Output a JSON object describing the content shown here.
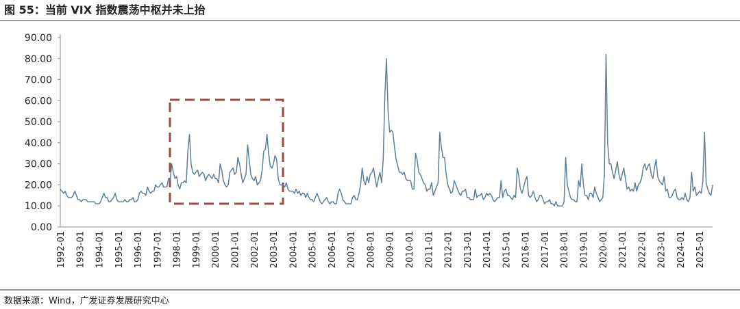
{
  "title": "图 55：当前 VIX 指数震荡中枢并未上抬",
  "source": "数据来源：Wind，广发证券发展研究中心",
  "chart_data": {
    "type": "line",
    "color": "#5e7f98",
    "ylim": [
      0,
      90
    ],
    "yticks": [
      {
        "value": 0,
        "label": "0.00"
      },
      {
        "value": 10,
        "label": "10.00"
      },
      {
        "value": 20,
        "label": "20.00"
      },
      {
        "value": 30,
        "label": "30.00"
      },
      {
        "value": 40,
        "label": "40.00"
      },
      {
        "value": 50,
        "label": "50.00"
      },
      {
        "value": 60,
        "label": "60.00"
      },
      {
        "value": 70,
        "label": "70.00"
      },
      {
        "value": 80,
        "label": "80.00"
      },
      {
        "value": 90,
        "label": "90.00"
      }
    ],
    "categories": [
      "1992-01",
      null,
      null,
      null,
      null,
      null,
      null,
      null,
      null,
      null,
      null,
      null,
      "1993-01",
      null,
      null,
      null,
      null,
      null,
      null,
      null,
      null,
      null,
      null,
      null,
      "1994-01",
      null,
      null,
      null,
      null,
      null,
      null,
      null,
      null,
      null,
      null,
      null,
      "1995-01",
      null,
      null,
      null,
      null,
      null,
      null,
      null,
      null,
      null,
      null,
      null,
      "1996-01",
      null,
      null,
      null,
      null,
      null,
      null,
      null,
      null,
      null,
      null,
      null,
      "1997-01",
      null,
      null,
      null,
      null,
      null,
      null,
      null,
      null,
      null,
      null,
      null,
      "1998-01",
      null,
      null,
      null,
      null,
      null,
      null,
      null,
      null,
      null,
      null,
      null,
      "1999-01",
      null,
      null,
      null,
      null,
      null,
      null,
      null,
      null,
      null,
      null,
      null,
      "2000-01",
      null,
      null,
      null,
      null,
      null,
      null,
      null,
      null,
      null,
      null,
      null,
      "2001-01",
      null,
      null,
      null,
      null,
      null,
      null,
      null,
      null,
      null,
      null,
      null,
      "2002-01",
      null,
      null,
      null,
      null,
      null,
      null,
      null,
      null,
      null,
      null,
      null,
      "2003-01",
      null,
      null,
      null,
      null,
      null,
      null,
      null,
      null,
      null,
      null,
      null,
      "2004-01",
      null,
      null,
      null,
      null,
      null,
      null,
      null,
      null,
      null,
      null,
      null,
      "2005-01",
      null,
      null,
      null,
      null,
      null,
      null,
      null,
      null,
      null,
      null,
      null,
      "2006-01",
      null,
      null,
      null,
      null,
      null,
      null,
      null,
      null,
      null,
      null,
      null,
      "2007-01",
      null,
      null,
      null,
      null,
      null,
      null,
      null,
      null,
      null,
      null,
      null,
      "2008-01",
      null,
      null,
      null,
      null,
      null,
      null,
      null,
      null,
      null,
      null,
      null,
      "2009-01",
      null,
      null,
      null,
      null,
      null,
      null,
      null,
      null,
      null,
      null,
      null,
      "2010-01",
      null,
      null,
      null,
      null,
      null,
      null,
      null,
      null,
      null,
      null,
      null,
      "2011-01",
      null,
      null,
      null,
      null,
      null,
      null,
      null,
      null,
      null,
      null,
      null,
      "2012-01",
      null,
      null,
      null,
      null,
      null,
      null,
      null,
      null,
      null,
      null,
      null,
      "2013-01",
      null,
      null,
      null,
      null,
      null,
      null,
      null,
      null,
      null,
      null,
      null,
      "2014-01",
      null,
      null,
      null,
      null,
      null,
      null,
      null,
      null,
      null,
      null,
      null,
      "2015-01",
      null,
      null,
      null,
      null,
      null,
      null,
      null,
      null,
      null,
      null,
      null,
      "2016-01",
      null,
      null,
      null,
      null,
      null,
      null,
      null,
      null,
      null,
      null,
      null,
      "2017-01",
      null,
      null,
      null,
      null,
      null,
      null,
      null,
      null,
      null,
      null,
      null,
      "2018-01",
      null,
      null,
      null,
      null,
      null,
      null,
      null,
      null,
      null,
      null,
      null,
      "2019-01",
      null,
      null,
      null,
      null,
      null,
      null,
      null,
      null,
      null,
      null,
      null,
      "2020-01",
      null,
      null,
      null,
      null,
      null,
      null,
      null,
      null,
      null,
      null,
      null,
      "2021-01",
      null,
      null,
      null,
      null,
      null,
      null,
      null,
      null,
      null,
      null,
      null,
      "2022-01",
      null,
      null,
      null,
      null,
      null,
      null,
      null,
      null,
      null,
      null,
      null,
      "2023-01",
      null,
      null,
      null,
      null,
      null,
      null,
      null,
      null,
      null,
      null,
      null,
      "2024-01",
      null,
      null,
      null,
      null,
      null,
      null,
      null,
      null,
      null,
      null,
      null,
      "2025-01",
      null,
      null,
      null,
      null,
      null,
      null,
      null,
      null
    ],
    "values": [
      18,
      17,
      16,
      17,
      15,
      14,
      14,
      14,
      15,
      17,
      15,
      13,
      13,
      12,
      13,
      13,
      13,
      12,
      12,
      12,
      12,
      12,
      11,
      11,
      11,
      12,
      14,
      16,
      14,
      14,
      12,
      12,
      13,
      14,
      16,
      13,
      12,
      12,
      12,
      12,
      13,
      12,
      12,
      13,
      13,
      14,
      12,
      12,
      13,
      16,
      17,
      16,
      16,
      15,
      19,
      17,
      16,
      17,
      17,
      20,
      19,
      19,
      20,
      21,
      19,
      19,
      19,
      23,
      22,
      30,
      26,
      23,
      24,
      20,
      18,
      21,
      21,
      22,
      21,
      36,
      44,
      30,
      26,
      25,
      26,
      27,
      24,
      25,
      26,
      25,
      22,
      24,
      25,
      24,
      23,
      25,
      23,
      23,
      21,
      30,
      27,
      22,
      20,
      19,
      20,
      26,
      27,
      28,
      25,
      26,
      33,
      30,
      25,
      21,
      23,
      25,
      39,
      32,
      25,
      23,
      22,
      24,
      20,
      21,
      22,
      27,
      36,
      37,
      44,
      35,
      29,
      28,
      30,
      34,
      32,
      23,
      20,
      20,
      20,
      19,
      21,
      18,
      17,
      17,
      17,
      16,
      18,
      16,
      17,
      15,
      16,
      16,
      14,
      16,
      14,
      13,
      13,
      12,
      14,
      16,
      14,
      12,
      11,
      12,
      13,
      14,
      12,
      11,
      12,
      12,
      11,
      11,
      16,
      18,
      16,
      13,
      12,
      11,
      11,
      11,
      11,
      14,
      15,
      13,
      13,
      16,
      20,
      28,
      22,
      20,
      24,
      21,
      25,
      26,
      28,
      23,
      19,
      23,
      26,
      21,
      32,
      62,
      80,
      55,
      45,
      46,
      45,
      38,
      32,
      29,
      26,
      26,
      25,
      26,
      23,
      22,
      22,
      22,
      18,
      18,
      35,
      32,
      26,
      25,
      23,
      21,
      20,
      17,
      18,
      18,
      21,
      15,
      17,
      19,
      21,
      45,
      38,
      33,
      33,
      25,
      20,
      18,
      16,
      17,
      22,
      20,
      18,
      16,
      15,
      17,
      17,
      18,
      14,
      14,
      13,
      13,
      13,
      18,
      14,
      15,
      15,
      16,
      13,
      14,
      16,
      15,
      16,
      15,
      13,
      12,
      13,
      14,
      14,
      22,
      14,
      17,
      18,
      15,
      15,
      14,
      13,
      15,
      14,
      28,
      24,
      18,
      16,
      19,
      22,
      24,
      15,
      14,
      15,
      17,
      14,
      12,
      13,
      15,
      15,
      13,
      11,
      12,
      12,
      13,
      11,
      11,
      10,
      12,
      10,
      10,
      10,
      10,
      12,
      33,
      20,
      17,
      14,
      13,
      13,
      12,
      12,
      22,
      19,
      30,
      20,
      15,
      15,
      13,
      16,
      16,
      14,
      19,
      16,
      14,
      12,
      13,
      14,
      25,
      82,
      40,
      30,
      30,
      26,
      23,
      27,
      31,
      25,
      22,
      25,
      28,
      23,
      18,
      19,
      17,
      18,
      17,
      21,
      17,
      20,
      21,
      23,
      28,
      30,
      27,
      29,
      30,
      25,
      23,
      28,
      32,
      24,
      22,
      21,
      20,
      24,
      17,
      18,
      14,
      14,
      15,
      17,
      18,
      14,
      13,
      13,
      14,
      13,
      16,
      13,
      12,
      14,
      26,
      17,
      19,
      15,
      16,
      17,
      16,
      22,
      45,
      21,
      18,
      16,
      15,
      20
    ]
  }
}
